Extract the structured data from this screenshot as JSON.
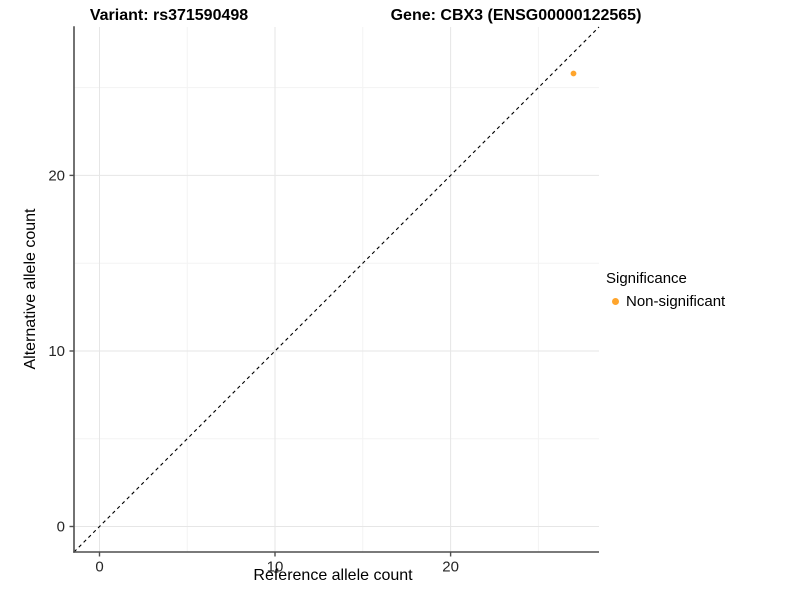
{
  "header": {
    "variant_title": "Variant: rs371590498",
    "gene_title": "Gene: CBX3 (ENSG00000122565)"
  },
  "chart_data": {
    "type": "scatter",
    "title": "Variant: rs371590498  /  Gene: CBX3 (ENSG00000122565)",
    "xlabel": "Reference allele count",
    "ylabel": "Alternative allele count",
    "xlim": [
      -1.45,
      28.45
    ],
    "ylim": [
      -1.45,
      28.45
    ],
    "x_major_ticks": [
      0,
      10,
      20
    ],
    "x_minor_gridlines": [
      5,
      15,
      25
    ],
    "y_major_ticks": [
      0,
      10,
      20
    ],
    "y_minor_gridlines": [
      5,
      15,
      25
    ],
    "grid": true,
    "points": [
      {
        "x": 27,
        "y": 25.8,
        "series": "Non-significant"
      }
    ],
    "reference_line": {
      "kind": "abline",
      "slope": 1,
      "intercept": 0,
      "style": "dashed",
      "color": "#000000"
    },
    "legend": {
      "title": "Significance",
      "position": "right",
      "items": [
        {
          "label": "Non-significant",
          "color": "#FFA52C"
        }
      ]
    }
  },
  "colors": {
    "background": "#FFFFFF",
    "axis_line": "#4F4F4F",
    "grid_major": "#E6E6E6",
    "grid_minor": "#F3F3F3",
    "tick_label": "#262626",
    "point": "#FFA52C"
  }
}
